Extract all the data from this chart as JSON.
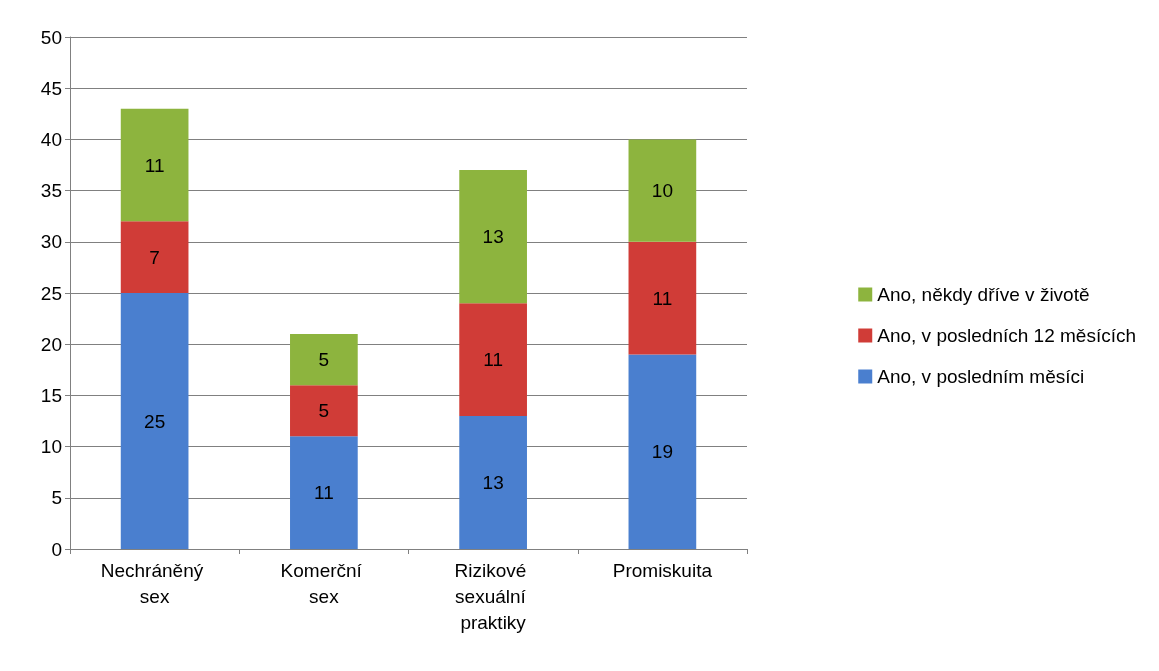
{
  "chart_data": {
    "type": "bar",
    "stacked": true,
    "categories": [
      "Nechráněný sex",
      "Komerční sex",
      "Rizikové sexuální praktiky",
      "Promiskuita"
    ],
    "series": [
      {
        "name": "Ano, v posledním měsíci",
        "color": "#4a7fcf",
        "values": [
          25,
          11,
          13,
          19
        ]
      },
      {
        "name": "Ano, v posledních 12 měsících",
        "color": "#d03c37",
        "values": [
          7,
          5,
          11,
          11
        ]
      },
      {
        "name": "Ano, někdy dříve v životě",
        "color": "#8db43e",
        "values": [
          11,
          5,
          13,
          10
        ]
      }
    ],
    "ylim": [
      0,
      50
    ],
    "yticks": [
      0,
      5,
      10,
      15,
      20,
      25,
      30,
      35,
      40,
      45,
      50
    ],
    "grid": "y",
    "legend": "right",
    "data_labels": true
  }
}
